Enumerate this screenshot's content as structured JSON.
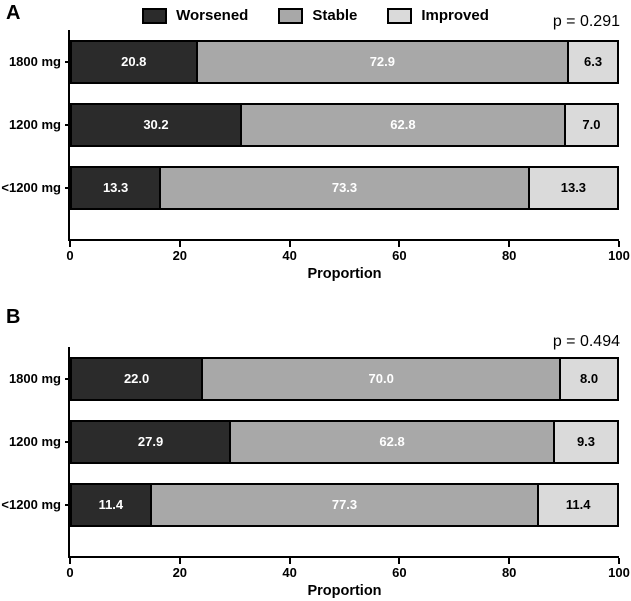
{
  "figure": {
    "legend": [
      {
        "label": "Worsened",
        "color": "#2b2b2b",
        "text_color": "#ffffff"
      },
      {
        "label": "Stable",
        "color": "#a8a8a8",
        "text_color": "#ffffff"
      },
      {
        "label": "Improved",
        "color": "#dadada",
        "text_color": "#000000"
      }
    ],
    "x_axis": {
      "title": "Proportion",
      "ticks": [
        {
          "value": 0,
          "label": "0"
        },
        {
          "value": 20,
          "label": "20"
        },
        {
          "value": 40,
          "label": "40"
        },
        {
          "value": 60,
          "label": "60"
        },
        {
          "value": 80,
          "label": "80"
        },
        {
          "value": 100,
          "label": "100"
        }
      ]
    },
    "panels": [
      {
        "letter": "A",
        "p_value": "p = 0.291",
        "rows": [
          {
            "category": "1800 mg",
            "segments": [
              {
                "value": 20.8,
                "label": "20.8"
              },
              {
                "value": 72.9,
                "label": "72.9"
              },
              {
                "value": 6.3,
                "label": "6.3"
              }
            ]
          },
          {
            "category": "1200 mg",
            "segments": [
              {
                "value": 30.2,
                "label": "30.2"
              },
              {
                "value": 62.8,
                "label": "62.8"
              },
              {
                "value": 7.0,
                "label": "7.0"
              }
            ]
          },
          {
            "category": "<1200 mg",
            "segments": [
              {
                "value": 13.3,
                "label": "13.3"
              },
              {
                "value": 73.3,
                "label": "73.3"
              },
              {
                "value": 13.3,
                "label": "13.3"
              }
            ]
          }
        ]
      },
      {
        "letter": "B",
        "p_value": "p = 0.494",
        "rows": [
          {
            "category": "1800 mg",
            "segments": [
              {
                "value": 22.0,
                "label": "22.0"
              },
              {
                "value": 70.0,
                "label": "70.0"
              },
              {
                "value": 8.0,
                "label": "8.0"
              }
            ]
          },
          {
            "category": "1200 mg",
            "segments": [
              {
                "value": 27.9,
                "label": "27.9"
              },
              {
                "value": 62.8,
                "label": "62.8"
              },
              {
                "value": 9.3,
                "label": "9.3"
              }
            ]
          },
          {
            "category": "<1200 mg",
            "segments": [
              {
                "value": 11.4,
                "label": "11.4"
              },
              {
                "value": 77.3,
                "label": "77.3"
              },
              {
                "value": 11.4,
                "label": "11.4"
              }
            ]
          }
        ]
      }
    ]
  },
  "chart_data": [
    {
      "type": "bar",
      "orientation": "horizontal",
      "stacked": true,
      "panel": "A",
      "categories": [
        "1800 mg",
        "1200 mg",
        "<1200 mg"
      ],
      "series": [
        {
          "name": "Worsened",
          "values": [
            20.8,
            30.2,
            13.3
          ]
        },
        {
          "name": "Stable",
          "values": [
            72.9,
            62.8,
            73.3
          ]
        },
        {
          "name": "Improved",
          "values": [
            6.3,
            7.0,
            13.3
          ]
        }
      ],
      "xlabel": "Proportion",
      "ylabel": "",
      "xlim": [
        0,
        100
      ],
      "x_ticks": [
        0,
        20,
        40,
        60,
        80,
        100
      ],
      "annotation": "p = 0.291",
      "legend_position": "top",
      "grid": false,
      "colors": {
        "Worsened": "#2b2b2b",
        "Stable": "#a8a8a8",
        "Improved": "#dadada"
      }
    },
    {
      "type": "bar",
      "orientation": "horizontal",
      "stacked": true,
      "panel": "B",
      "categories": [
        "1800 mg",
        "1200 mg",
        "<1200 mg"
      ],
      "series": [
        {
          "name": "Worsened",
          "values": [
            22.0,
            27.9,
            11.4
          ]
        },
        {
          "name": "Stable",
          "values": [
            70.0,
            62.8,
            77.3
          ]
        },
        {
          "name": "Improved",
          "values": [
            8.0,
            9.3,
            11.4
          ]
        }
      ],
      "xlabel": "Proportion",
      "ylabel": "",
      "xlim": [
        0,
        100
      ],
      "x_ticks": [
        0,
        20,
        40,
        60,
        80,
        100
      ],
      "annotation": "p = 0.494",
      "legend_position": "top",
      "grid": false,
      "colors": {
        "Worsened": "#2b2b2b",
        "Stable": "#a8a8a8",
        "Improved": "#dadada"
      }
    }
  ]
}
